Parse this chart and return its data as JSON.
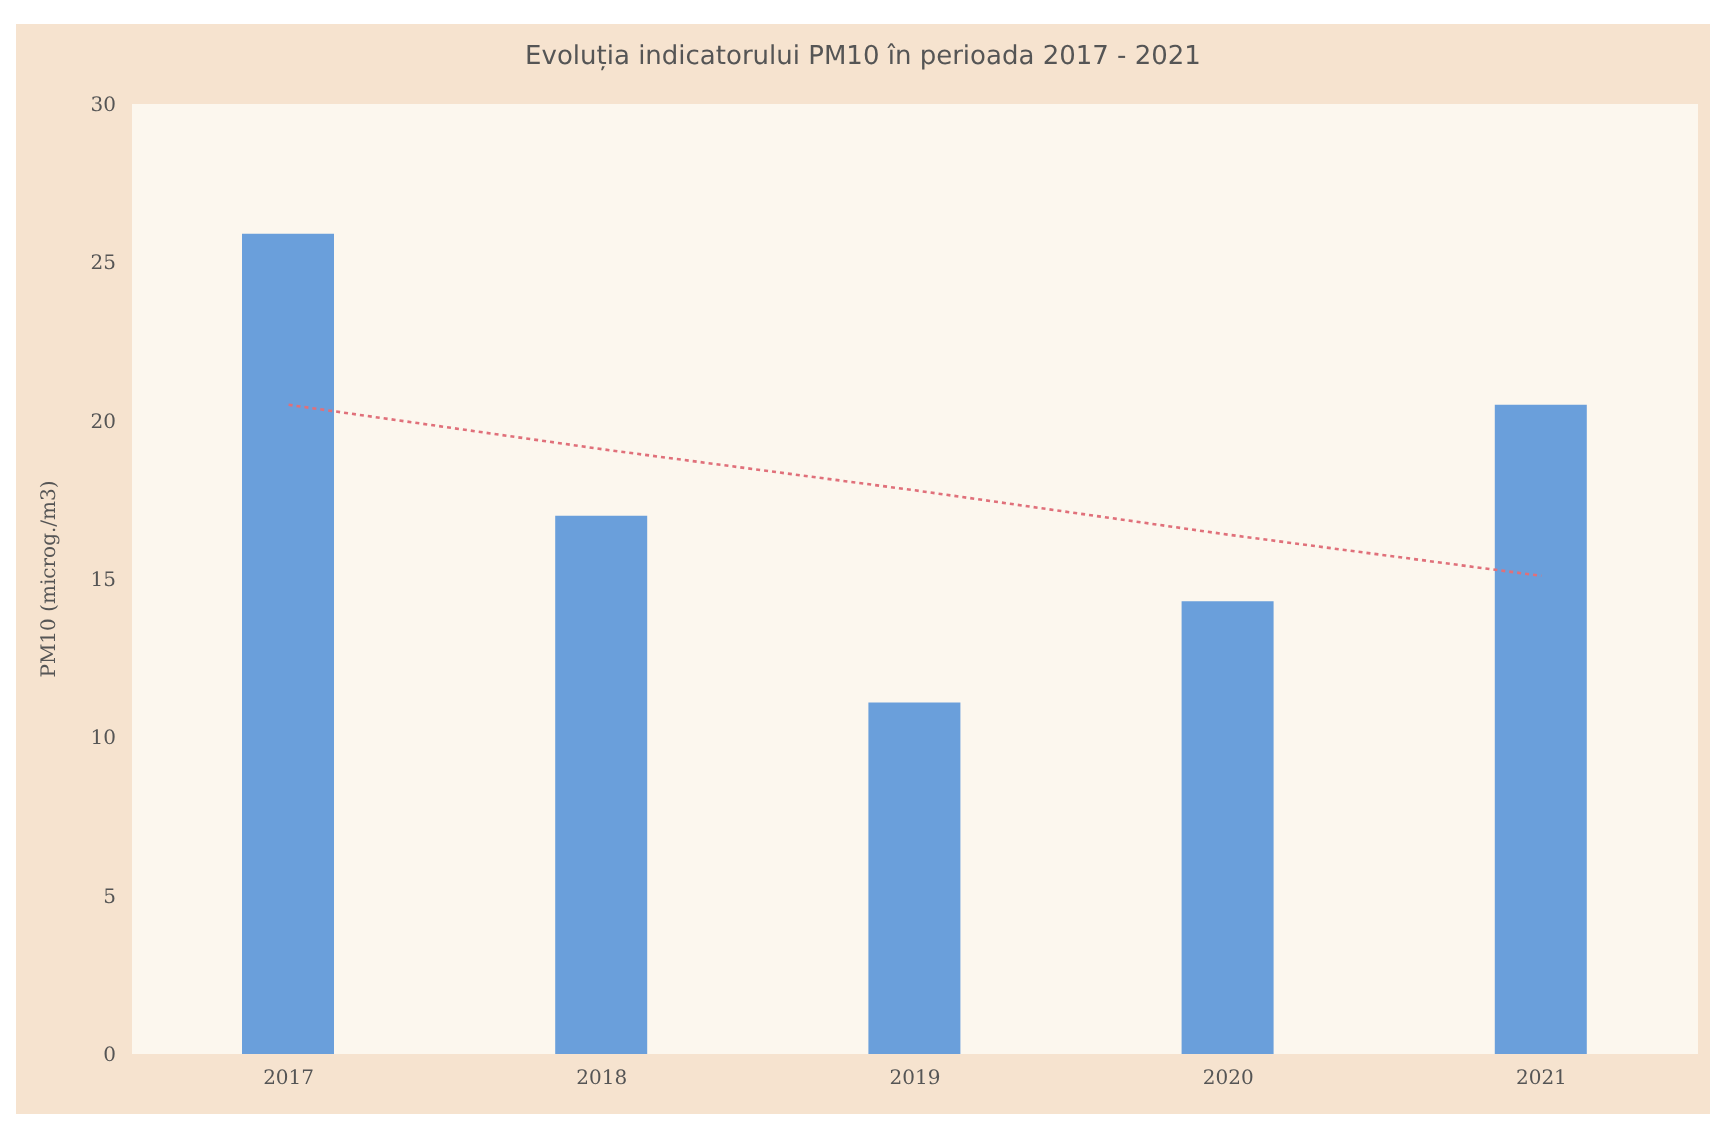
{
  "chart_data": {
    "type": "bar",
    "title": "Evoluția indicatorului PM10 în perioada 2017 - 2021",
    "ylabel": "PM10 (microg./m3)",
    "categories": [
      "2017",
      "2018",
      "2019",
      "2020",
      "2021"
    ],
    "series": [
      {
        "color": "#6a9fdb",
        "values": [
          25.9,
          17.0,
          11.1,
          14.3,
          20.5
        ]
      },
      {
        "type": "line",
        "color": "#e0707a",
        "line_style": "dotted",
        "values": [
          20.5,
          19.1,
          17.8,
          16.4,
          15.1
        ]
      }
    ],
    "ylim": [
      0,
      30
    ],
    "yticks": [
      0,
      5,
      10,
      15,
      20,
      25,
      30
    ],
    "legend": false
  }
}
